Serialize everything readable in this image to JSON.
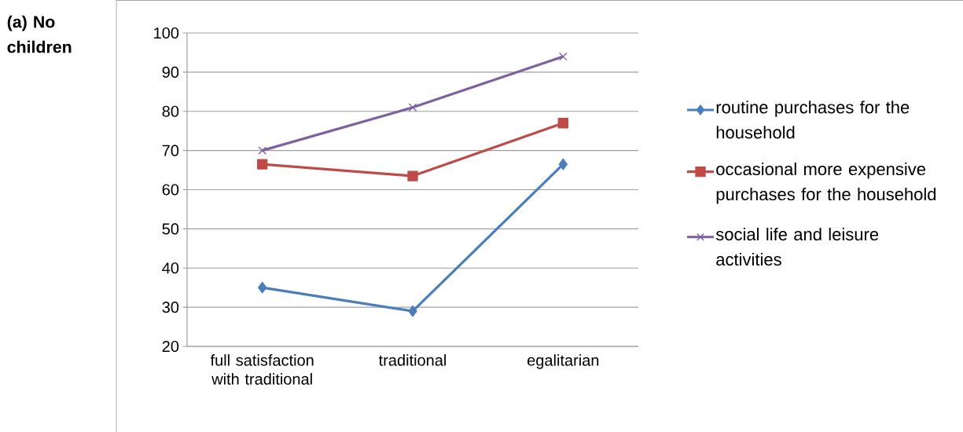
{
  "chart_data": {
    "type": "line",
    "title": "(a) No children",
    "categories": [
      "full satisfaction with traditional",
      "traditional",
      "egalitarian"
    ],
    "series": [
      {
        "name": "routine purchases for the household",
        "color": "#4a7ebb",
        "marker": "diamond",
        "values": [
          35,
          29,
          66.5
        ]
      },
      {
        "name": "occasional more expensive purchases for the household",
        "color": "#be4b48",
        "marker": "square",
        "values": [
          66.5,
          63.5,
          77
        ]
      },
      {
        "name": "social life and leisure activities",
        "color": "#7d60a0",
        "marker": "cross",
        "values": [
          70,
          81,
          94
        ]
      }
    ],
    "ylim": [
      20,
      100
    ],
    "yticks": [
      20,
      30,
      40,
      50,
      60,
      70,
      80,
      90,
      100
    ],
    "grid": "y",
    "legend": "right",
    "line_style": "solid"
  }
}
